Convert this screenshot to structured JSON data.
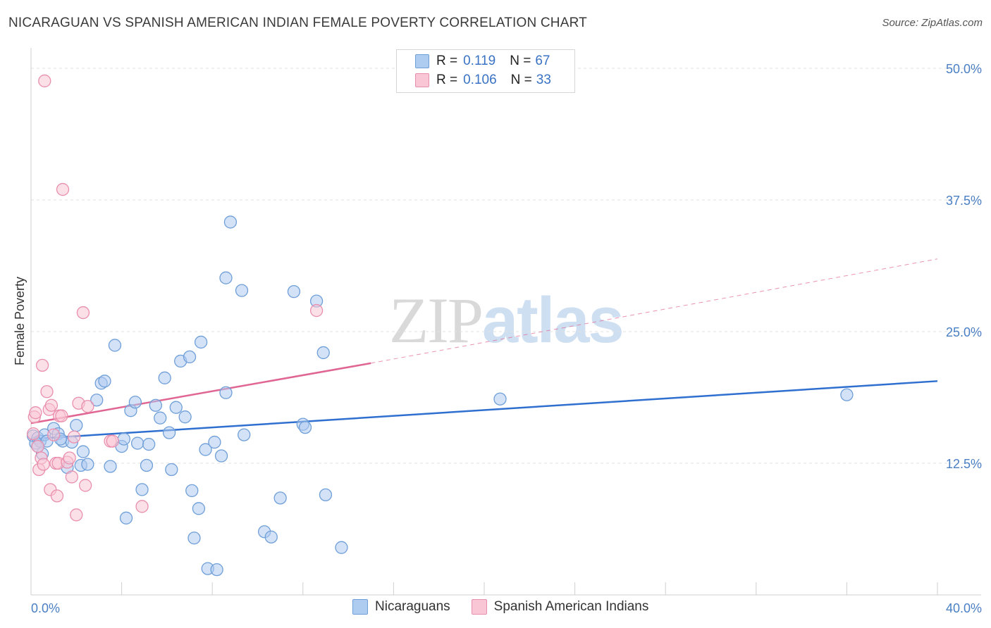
{
  "header": {
    "title": "NICARAGUAN VS SPANISH AMERICAN INDIAN FEMALE POVERTY CORRELATION CHART",
    "source": "Source: ZipAtlas.com"
  },
  "watermark": {
    "part1": "ZIP",
    "part2": "atlas"
  },
  "legend": {
    "rows": [
      {
        "r_label": "R =",
        "r_value": "0.119",
        "n_label": "N =",
        "n_value": "67",
        "color": "#aecbf0",
        "border": "#6f9fd8"
      },
      {
        "r_label": "R =",
        "r_value": "0.106",
        "n_label": "N =",
        "n_value": "33",
        "color": "#f9c6d6",
        "border": "#e98fae"
      }
    ]
  },
  "bottom_legend": [
    {
      "label": "Nicaraguans",
      "color": "#aecbf0",
      "border": "#6f9fd8"
    },
    {
      "label": "Spanish American Indians",
      "color": "#f9c6d6",
      "border": "#e98fae"
    }
  ],
  "chart_data": {
    "type": "scatter",
    "title": "NICARAGUAN VS SPANISH AMERICAN INDIAN FEMALE POVERTY CORRELATION CHART",
    "xlabel": "",
    "ylabel": "Female Poverty",
    "xlim": [
      0,
      40
    ],
    "ylim": [
      0,
      50
    ],
    "x_tick_labels": [
      {
        "value": 0,
        "label": "0.0%"
      },
      {
        "value": 40,
        "label": "40.0%"
      }
    ],
    "y_tick_labels": [
      {
        "value": 12.5,
        "label": "12.5%"
      },
      {
        "value": 25,
        "label": "25.0%"
      },
      {
        "value": 37.5,
        "label": "37.5%"
      },
      {
        "value": 50,
        "label": "50.0%"
      }
    ],
    "series": [
      {
        "name": "Nicaraguans",
        "color": "#6f9fd8",
        "fill": "#aecbf0",
        "trend": {
          "x0": 0,
          "y0": 14.8,
          "x1": 40,
          "y1": 20.3,
          "dashed_to": null
        },
        "points": [
          [
            0.1,
            15.1
          ],
          [
            0.2,
            14.4
          ],
          [
            0.3,
            14.9
          ],
          [
            0.4,
            14.6
          ],
          [
            0.5,
            13.4
          ],
          [
            0.6,
            15.2
          ],
          [
            0.7,
            14.6
          ],
          [
            1.0,
            15.8
          ],
          [
            1.2,
            15.3
          ],
          [
            1.4,
            14.6
          ],
          [
            1.6,
            12.1
          ],
          [
            1.8,
            14.5
          ],
          [
            2.0,
            16.1
          ],
          [
            2.2,
            12.3
          ],
          [
            2.3,
            13.6
          ],
          [
            2.5,
            12.4
          ],
          [
            2.9,
            18.5
          ],
          [
            3.1,
            20.1
          ],
          [
            3.25,
            20.3
          ],
          [
            3.5,
            12.2
          ],
          [
            3.7,
            23.7
          ],
          [
            4.0,
            14.1
          ],
          [
            4.1,
            14.8
          ],
          [
            4.2,
            7.3
          ],
          [
            4.4,
            17.5
          ],
          [
            4.6,
            18.3
          ],
          [
            4.7,
            14.4
          ],
          [
            4.9,
            10.0
          ],
          [
            5.1,
            12.3
          ],
          [
            5.2,
            14.3
          ],
          [
            5.5,
            18.0
          ],
          [
            5.7,
            16.8
          ],
          [
            5.9,
            20.6
          ],
          [
            6.1,
            15.4
          ],
          [
            6.2,
            11.9
          ],
          [
            6.4,
            17.8
          ],
          [
            6.6,
            22.2
          ],
          [
            6.8,
            16.9
          ],
          [
            7.0,
            22.6
          ],
          [
            7.1,
            9.9
          ],
          [
            7.2,
            5.4
          ],
          [
            7.4,
            8.2
          ],
          [
            7.5,
            24.0
          ],
          [
            7.7,
            13.8
          ],
          [
            7.8,
            2.5
          ],
          [
            8.1,
            14.5
          ],
          [
            8.2,
            2.4
          ],
          [
            8.4,
            13.2
          ],
          [
            8.6,
            19.2
          ],
          [
            8.8,
            35.4
          ],
          [
            8.6,
            30.1
          ],
          [
            9.3,
            28.9
          ],
          [
            9.4,
            15.2
          ],
          [
            10.3,
            6.0
          ],
          [
            10.6,
            5.5
          ],
          [
            11.0,
            9.2
          ],
          [
            11.6,
            28.8
          ],
          [
            12.0,
            16.2
          ],
          [
            12.1,
            15.9
          ],
          [
            12.6,
            27.9
          ],
          [
            12.9,
            23.0
          ],
          [
            13.0,
            9.5
          ],
          [
            13.7,
            4.5
          ],
          [
            20.7,
            18.6
          ],
          [
            36.0,
            19.0
          ],
          [
            0.3,
            14.1
          ],
          [
            1.3,
            14.8
          ]
        ]
      },
      {
        "name": "Spanish American Indians",
        "color": "#e98fae",
        "fill": "#f9c6d6",
        "trend": {
          "x0": 0,
          "y0": 16.3,
          "x1": 15.0,
          "y1": 22.0,
          "dashed_to": {
            "x": 40,
            "y": 31.9
          }
        },
        "points": [
          [
            0.1,
            15.3
          ],
          [
            0.15,
            16.9
          ],
          [
            0.2,
            17.3
          ],
          [
            0.3,
            14.1
          ],
          [
            0.35,
            11.9
          ],
          [
            0.45,
            13.0
          ],
          [
            0.5,
            21.8
          ],
          [
            0.55,
            12.4
          ],
          [
            0.6,
            48.8
          ],
          [
            0.7,
            19.3
          ],
          [
            0.8,
            17.6
          ],
          [
            0.85,
            10.0
          ],
          [
            0.9,
            18.0
          ],
          [
            1.0,
            15.2
          ],
          [
            1.1,
            12.5
          ],
          [
            1.15,
            9.4
          ],
          [
            1.2,
            12.5
          ],
          [
            1.25,
            17.0
          ],
          [
            1.35,
            17.0
          ],
          [
            1.4,
            38.5
          ],
          [
            1.6,
            12.6
          ],
          [
            1.7,
            13.0
          ],
          [
            1.8,
            11.2
          ],
          [
            1.9,
            15.0
          ],
          [
            2.0,
            7.6
          ],
          [
            2.1,
            18.2
          ],
          [
            2.3,
            26.8
          ],
          [
            2.4,
            10.4
          ],
          [
            2.5,
            17.9
          ],
          [
            3.5,
            14.6
          ],
          [
            3.6,
            14.6
          ],
          [
            4.9,
            8.4
          ],
          [
            12.6,
            27.0
          ]
        ]
      }
    ]
  }
}
